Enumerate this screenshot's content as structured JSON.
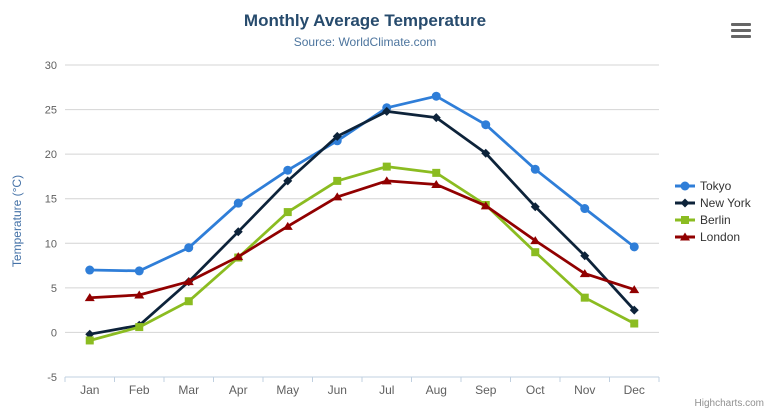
{
  "chart_data": {
    "type": "line",
    "title": "Monthly Average Temperature",
    "subtitle": "Source: WorldClimate.com",
    "xlabel": "",
    "ylabel": "Temperature (°C)",
    "ylim": [
      -5,
      30
    ],
    "ytick_step": 5,
    "grid": true,
    "legend_position": "right-middle",
    "categories": [
      "Jan",
      "Feb",
      "Mar",
      "Apr",
      "May",
      "Jun",
      "Jul",
      "Aug",
      "Sep",
      "Oct",
      "Nov",
      "Dec"
    ],
    "series": [
      {
        "name": "Tokyo",
        "color": "#2f7ed8",
        "marker": "circle",
        "values": [
          7.0,
          6.9,
          9.5,
          14.5,
          18.2,
          21.5,
          25.2,
          26.5,
          23.3,
          18.3,
          13.9,
          9.6
        ]
      },
      {
        "name": "New York",
        "color": "#0d233a",
        "marker": "diamond",
        "values": [
          -0.2,
          0.8,
          5.7,
          11.3,
          17.0,
          22.0,
          24.8,
          24.1,
          20.1,
          14.1,
          8.6,
          2.5
        ]
      },
      {
        "name": "Berlin",
        "color": "#8bbc21",
        "marker": "square",
        "values": [
          -0.9,
          0.6,
          3.5,
          8.4,
          13.5,
          17.0,
          18.6,
          17.9,
          14.3,
          9.0,
          3.9,
          1.0
        ]
      },
      {
        "name": "London",
        "color": "#910000",
        "marker": "triangle",
        "values": [
          3.9,
          4.2,
          5.7,
          8.5,
          11.9,
          15.2,
          17.0,
          16.6,
          14.2,
          10.3,
          6.6,
          4.8
        ]
      }
    ]
  },
  "credits": {
    "label": "Highcharts.com"
  },
  "icons": {
    "context_menu": "hamburger-menu-icon"
  },
  "colors": {
    "title_text": "#274b6d",
    "subtitle_text": "#4d759e",
    "axis_label": "#606060",
    "axis_title": "#4572A7",
    "grid_line": "#d4d4d4",
    "axis_line": "#c0d0e0",
    "legend_text": "#333333",
    "menu_icon": "#666666",
    "credit_text": "#909090",
    "background": "#ffffff"
  }
}
